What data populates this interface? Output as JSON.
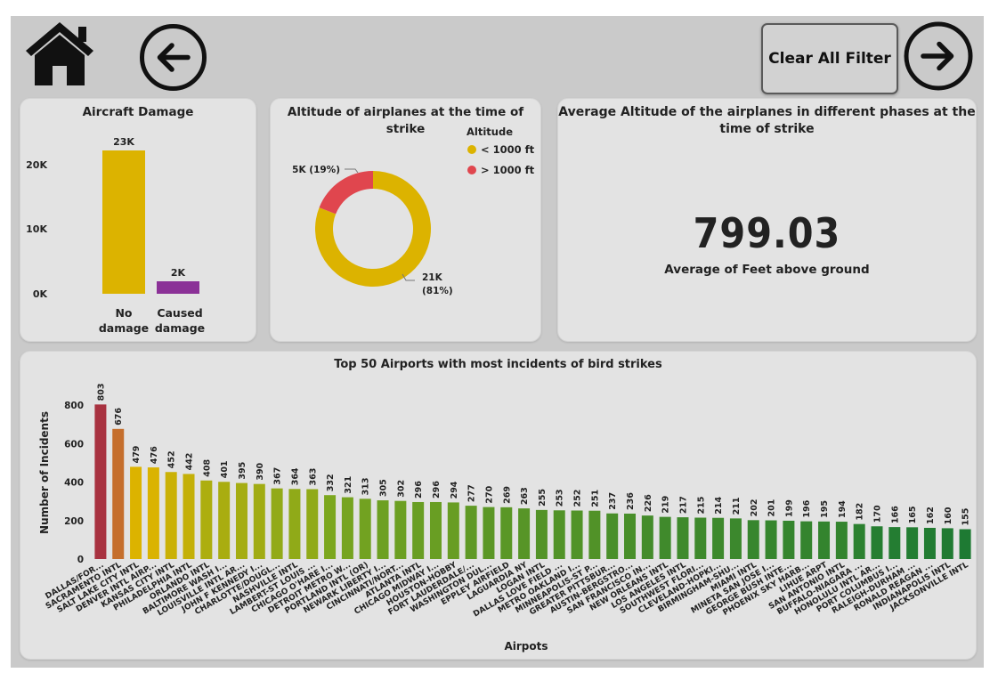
{
  "nav": {
    "home_icon": "home-icon",
    "back_icon": "arrow-left-icon",
    "forward_icon": "arrow-right-icon",
    "clear_label": "Clear All Filter"
  },
  "colors": {
    "canvas": "#cacaca",
    "card": "#e3e3e3",
    "no_damage": "#dcb300",
    "caused_damage": "#8b3197",
    "low_alt": "#dcb300",
    "high_alt": "#e0464e"
  },
  "damage": {
    "title": "Aircraft Damage",
    "ticks": [
      "0K",
      "10K",
      "20K"
    ],
    "bar_labels": [
      "23K",
      "2K"
    ]
  },
  "altitude": {
    "title": "Altitude of airplanes at the time of strike",
    "legend_title": "Altitude",
    "slice_labels": [
      "5K (19%)",
      "21K",
      "(81%)"
    ]
  },
  "kpi": {
    "title_line1": "Average Altitude of the airplanes in different phases at the",
    "title_line2": "time of strike",
    "value": "799.03",
    "label": "Average of Feet above ground"
  },
  "airports": {
    "title": "Top 50 Airports with most incidents of bird strikes"
  },
  "chart_data": [
    {
      "type": "bar",
      "title": "Aircraft Damage",
      "categories": [
        "No damage",
        "Caused damage"
      ],
      "values": [
        23000,
        2000
      ],
      "ylim": [
        0,
        25000
      ],
      "xlabel": "",
      "ylabel": ""
    },
    {
      "type": "pie",
      "title": "Altitude of airplanes at the time of strike",
      "categories": [
        "< 1000 ft",
        "> 1000 ft"
      ],
      "values": [
        81,
        19
      ],
      "legend_title": "Altitude",
      "legend_position": "top-right"
    },
    {
      "type": "bar",
      "title": "Top 50 Airports with most incidents of bird strikes",
      "xlabel": "Airpots",
      "ylabel": "Number of Incidents",
      "ylim": [
        0,
        850
      ],
      "yticks": [
        0,
        200,
        400,
        600,
        800
      ],
      "categories": [
        "DALLAS/FOR...",
        "SACRAMENTO INTL",
        "SALT LAKE CITY INTL",
        "DENVER INTL AIRP...",
        "KANSAS CITY INTL",
        "PHILADELPHIA INTL",
        "ORLANDO INTL",
        "BALTIMORE WASH I...",
        "LOUISVILLE INTL AR...",
        "JOHN F KENNEDY I...",
        "CHARLOTTE/DOUGL...",
        "NASHVILLE INTL",
        "LAMBERT-ST LOUIS ...",
        "CHICAGO O'HARE I...",
        "DETROIT METRO W...",
        "PORTLAND INTL (OR)",
        "NEWARK LIBERTY I...",
        "CINCINNATI/NORT...",
        "ATLANTA INTL",
        "CHICAGO MIDWAY I...",
        "HOUSTON-HOBBY",
        "FORT LAUDERDALE/...",
        "WASHINGTON DUL...",
        "EPPLEY AIRFIELD",
        "LAGUARDIA NY",
        "LOGAN INTL",
        "DALLAS LOVE FIELD ...",
        "METRO OAKLAND I...",
        "MINNEAPOLIS-ST P...",
        "GREATER PITTSBUR...",
        "AUSTIN-BERGSTRO...",
        "SAN FRANCISCO IN...",
        "NEW ORLEANS INTL",
        "LOS ANGELES INTL",
        "SOUTHWEST FLORI...",
        "CLEVELAND-HOPKI...",
        "BIRMINGHAM-SHU...",
        "MIAMI INTL",
        "MINETA SAN JOSE I...",
        "GEORGE BUSH INTE...",
        "PHOENIX SKY HARB...",
        "LIHUE ARPT",
        "SAN ANTONIO INTL",
        "BUFFALO-NIAGARA ...",
        "HONOLULU INTL AR...",
        "PORT COLUMBUS I...",
        "RALEIGH-DURHAM ...",
        "RONALD REAGAN ...",
        "INDIANAPOLIS INTL",
        "JACKSONVILLE INTL"
      ],
      "values": [
        803,
        676,
        479,
        476,
        452,
        442,
        408,
        401,
        395,
        390,
        367,
        364,
        363,
        332,
        321,
        313,
        305,
        302,
        296,
        296,
        294,
        277,
        270,
        269,
        263,
        255,
        253,
        252,
        251,
        237,
        236,
        226,
        219,
        217,
        215,
        214,
        211,
        202,
        201,
        199,
        196,
        195,
        194,
        182,
        170,
        166,
        165,
        162,
        160,
        155
      ],
      "data_labels": [
        "803",
        "676",
        "479",
        "476",
        "452",
        "442",
        "408",
        "401",
        "395",
        "390",
        "367",
        "364",
        "363",
        "332",
        "321",
        "313",
        "305",
        "302",
        "296",
        "296",
        "294",
        "277",
        "270",
        "269",
        "263",
        "255",
        "253",
        "252",
        "251",
        "237",
        "236",
        "226",
        "219",
        "217",
        "215",
        "214",
        "211",
        "202",
        "201",
        "199",
        "196",
        "195",
        "194",
        "182",
        "170",
        "166",
        "165",
        "162",
        "160",
        "155"
      ],
      "color_scale": [
        "#1e7a33",
        "#7ea81e",
        "#dcb300",
        "#c8772b",
        "#a83240"
      ]
    }
  ]
}
